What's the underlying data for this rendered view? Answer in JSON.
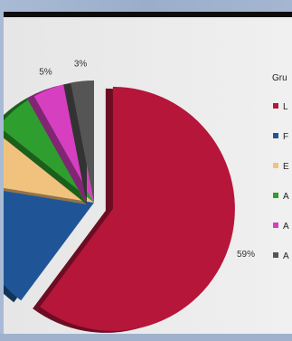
{
  "chart_data": {
    "type": "pie",
    "title": "",
    "legend_title": "Gru",
    "legend_position": "right",
    "slices": [
      {
        "label": "L",
        "value": 59,
        "color": "#b5163a",
        "exploded": true,
        "value_label": "59%"
      },
      {
        "label": "F",
        "value": 17,
        "color": "#1f5596",
        "exploded": false,
        "value_label": ""
      },
      {
        "label": "E",
        "value": 8,
        "color": "#f1c27d",
        "exploded": false,
        "value_label": ""
      },
      {
        "label": "A",
        "value": 6,
        "color": "#2e9e2e",
        "exploded": false,
        "value_label": ""
      },
      {
        "label": "A",
        "value": 5,
        "color": "#d63fc0",
        "exploded": false,
        "value_label": "5%"
      },
      {
        "label": "A",
        "value": 3,
        "color": "#555555",
        "exploded": false,
        "value_label": "3%"
      }
    ]
  }
}
